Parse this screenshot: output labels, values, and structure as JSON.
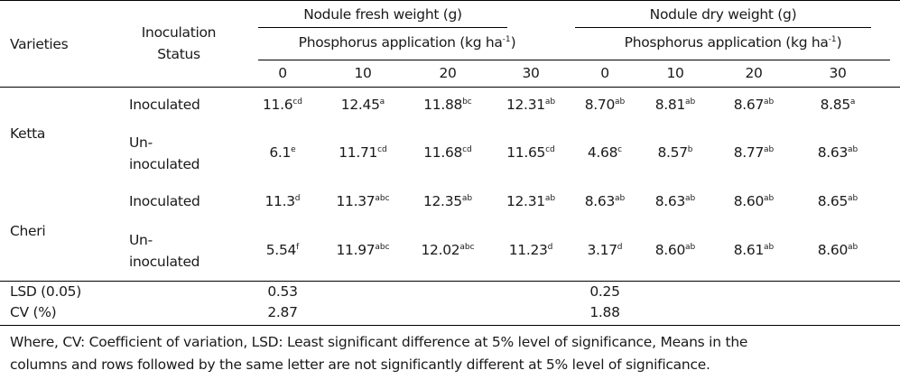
{
  "header": {
    "varieties": "Varieties",
    "inoculation_line1": "Inoculation",
    "inoculation_line2": "Status",
    "fresh_weight": "Nodule fresh weight (g)",
    "dry_weight": "Nodule dry weight (g)",
    "phosphorus_fresh": "Phosphorus application (kg ha",
    "phosphorus_dry": "Phosphorus application (kg ha",
    "unit_exp": "-1",
    "unit_close": ")",
    "levels": [
      "0",
      "10",
      "20",
      "30"
    ]
  },
  "rows": [
    {
      "variety": "Ketta",
      "inoculated_label": "Inoculated",
      "inoculated": [
        {
          "v": "11.6",
          "s": "cd"
        },
        {
          "v": "12.45",
          "s": "a"
        },
        {
          "v": "11.88",
          "s": "bc"
        },
        {
          "v": "12.31",
          "s": "ab"
        },
        {
          "v": "8.70",
          "s": "ab"
        },
        {
          "v": "8.81",
          "s": "ab"
        },
        {
          "v": "8.67",
          "s": "ab"
        },
        {
          "v": "8.85",
          "s": "a"
        }
      ],
      "uninoc_label_1": "Un-",
      "uninoc_label_2": "inoculated",
      "uninoculated": [
        {
          "v": "6.1",
          "s": "e"
        },
        {
          "v": "11.71",
          "s": "cd"
        },
        {
          "v": "11.68",
          "s": "cd"
        },
        {
          "v": "11.65",
          "s": "cd"
        },
        {
          "v": "4.68",
          "s": "c"
        },
        {
          "v": "8.57",
          "s": "b"
        },
        {
          "v": "8.77",
          "s": "ab"
        },
        {
          "v": "8.63",
          "s": "ab"
        }
      ]
    },
    {
      "variety": "Cheri",
      "inoculated_label": "Inoculated",
      "inoculated": [
        {
          "v": "11.3",
          "s": "d"
        },
        {
          "v": "11.37",
          "s": "abc"
        },
        {
          "v": "12.35",
          "s": "ab"
        },
        {
          "v": "12.31",
          "s": "ab"
        },
        {
          "v": "8.63",
          "s": "ab"
        },
        {
          "v": "8.63",
          "s": "ab"
        },
        {
          "v": "8.60",
          "s": "ab"
        },
        {
          "v": "8.65",
          "s": "ab"
        }
      ],
      "uninoc_label_1": "Un-",
      "uninoc_label_2": "inoculated",
      "uninoculated": [
        {
          "v": "5.54",
          "s": "f"
        },
        {
          "v": "11.97",
          "s": "abc"
        },
        {
          "v": "12.02",
          "s": "abc"
        },
        {
          "v": "11.23",
          "s": "d"
        },
        {
          "v": "3.17",
          "s": "d"
        },
        {
          "v": "8.60",
          "s": "ab"
        },
        {
          "v": "8.61",
          "s": "ab"
        },
        {
          "v": "8.60",
          "s": "ab"
        }
      ]
    }
  ],
  "stats": {
    "lsd_label": "LSD (0.05)",
    "lsd_fresh": "0.53",
    "lsd_dry": "0.25",
    "cv_label": "CV (%)",
    "cv_fresh": "2.87",
    "cv_dry": "1.88"
  },
  "footnote": {
    "line1": "Where, CV: Coefficient of variation, LSD: Least significant difference at 5% level of significance, Means in the",
    "line2": "columns and rows followed by the same letter are not significantly different at 5% level of significance."
  }
}
